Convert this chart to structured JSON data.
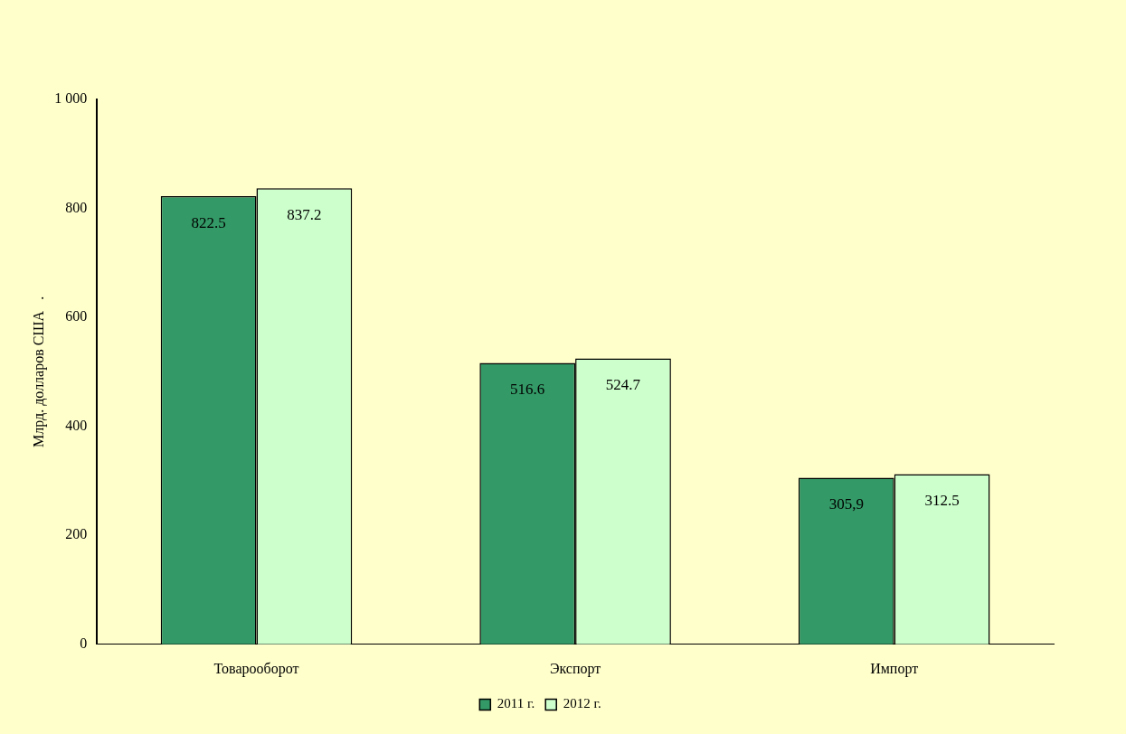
{
  "chart_data": {
    "type": "bar",
    "ylabel": "Млрд. долларов США   .",
    "categories": [
      "Товарооборот",
      "Экспорт",
      "Импорт"
    ],
    "series": [
      {
        "name": "2011 г.",
        "color": "#339966",
        "values": [
          822.5,
          516.6,
          305.9
        ],
        "value_labels": [
          "822.5",
          "516.6",
          "305,9"
        ]
      },
      {
        "name": "2012 г.",
        "color": "#ccffcc",
        "values": [
          837.2,
          524.7,
          312.5
        ],
        "value_labels": [
          "837.2",
          "524.7",
          "312.5"
        ]
      }
    ],
    "ylim": [
      0,
      1000
    ],
    "yticks": [
      0,
      200,
      400,
      600,
      800,
      {
        "value": 1000,
        "label": "1 000"
      }
    ],
    "grid": false,
    "legend": "bottom"
  }
}
